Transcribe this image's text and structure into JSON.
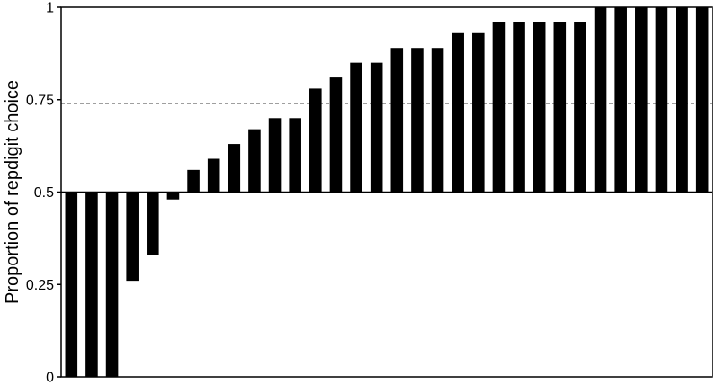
{
  "chart_data": {
    "type": "bar",
    "title": "",
    "xlabel": "",
    "ylabel": "Proportion of repdigit choice",
    "ylim": [
      0,
      1
    ],
    "baseline": 0.5,
    "reference_line": 0.74,
    "yticks": [
      {
        "value": 0,
        "label": "0"
      },
      {
        "value": 0.25,
        "label": "0.25"
      },
      {
        "value": 0.5,
        "label": "0.5"
      },
      {
        "value": 0.75,
        "label": "0.75"
      },
      {
        "value": 1,
        "label": "1"
      }
    ],
    "grid": false,
    "values": [
      0,
      0,
      0,
      0.26,
      0.33,
      0.48,
      0.56,
      0.59,
      0.63,
      0.67,
      0.7,
      0.7,
      0.78,
      0.81,
      0.85,
      0.85,
      0.89,
      0.89,
      0.89,
      0.93,
      0.93,
      0.96,
      0.96,
      0.96,
      0.96,
      0.96,
      1,
      1,
      1,
      1,
      1,
      1
    ],
    "bar_color": "#000000",
    "reference_line_color": "#000000"
  }
}
